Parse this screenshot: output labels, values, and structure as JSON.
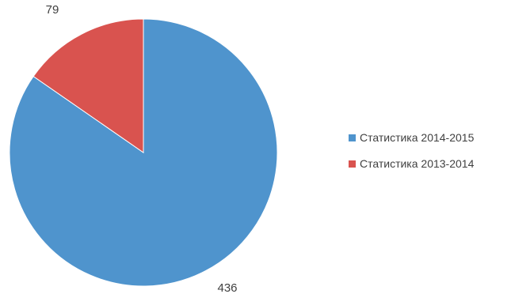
{
  "chart_data": {
    "type": "pie",
    "title": "",
    "series": [
      {
        "name": "Статистика 2014-2015",
        "value": 436,
        "label": "436",
        "color": "#4f94cd"
      },
      {
        "name": "Статистика 2013-2014",
        "value": 79,
        "label": "79",
        "color": "#d9534f"
      }
    ],
    "start_angle": "12 o'clock",
    "direction": "clockwise",
    "legend_position": "right"
  }
}
